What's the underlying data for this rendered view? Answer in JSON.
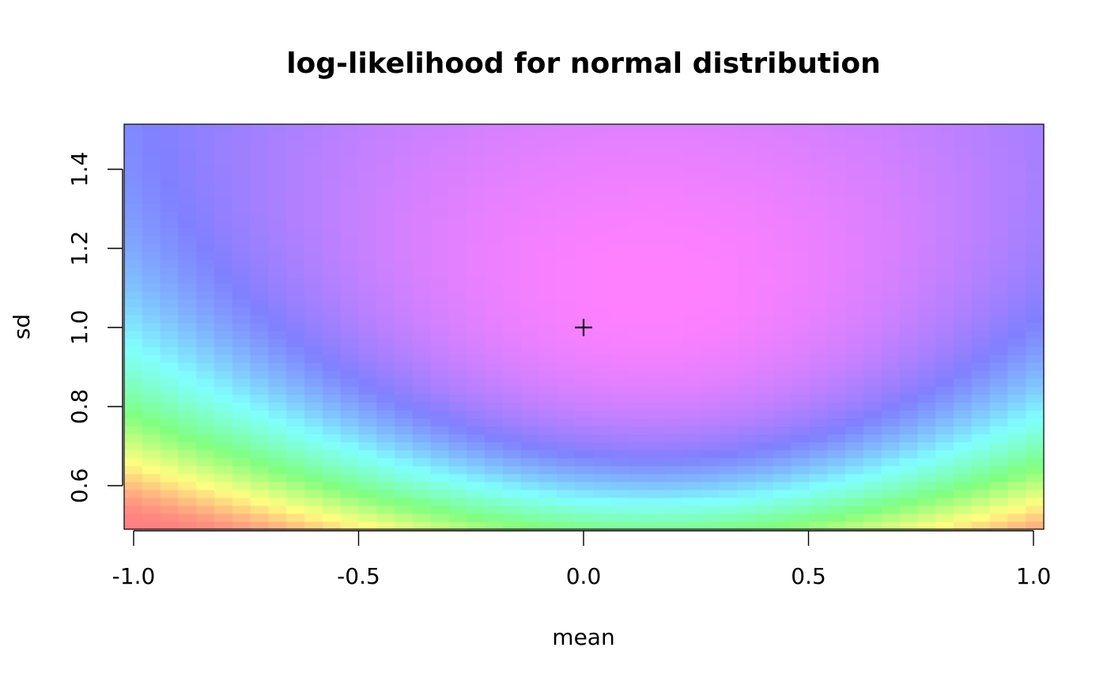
{
  "chart_data": {
    "type": "heatmap",
    "title": "log-likelihood for normal distribution",
    "xlabel": "mean",
    "ylabel": "sd",
    "xlim": [
      -1.0,
      1.0
    ],
    "ylim": [
      0.5,
      1.5
    ],
    "x_ticks": [
      -1.0,
      -0.5,
      0.0,
      0.5,
      1.0
    ],
    "x_tick_labels": [
      "-1.0",
      "-0.5",
      "0.0",
      "0.5",
      "1.0"
    ],
    "y_ticks": [
      0.6,
      0.8,
      1.0,
      1.2,
      1.4
    ],
    "y_tick_labels": [
      "0.6",
      "0.8",
      "1.0",
      "1.2",
      "1.4"
    ],
    "grid_resolution": {
      "nx": 51,
      "ny": 51
    },
    "estimated_peak": {
      "mean": 0.15,
      "sd": 1.1
    },
    "marker": {
      "symbol": "+",
      "mean": 0.0,
      "sd": 1.0
    },
    "colormap": "rainbow-reversed (red low, magenta high)",
    "alpha": 0.5,
    "grid": false,
    "legend": "none"
  }
}
